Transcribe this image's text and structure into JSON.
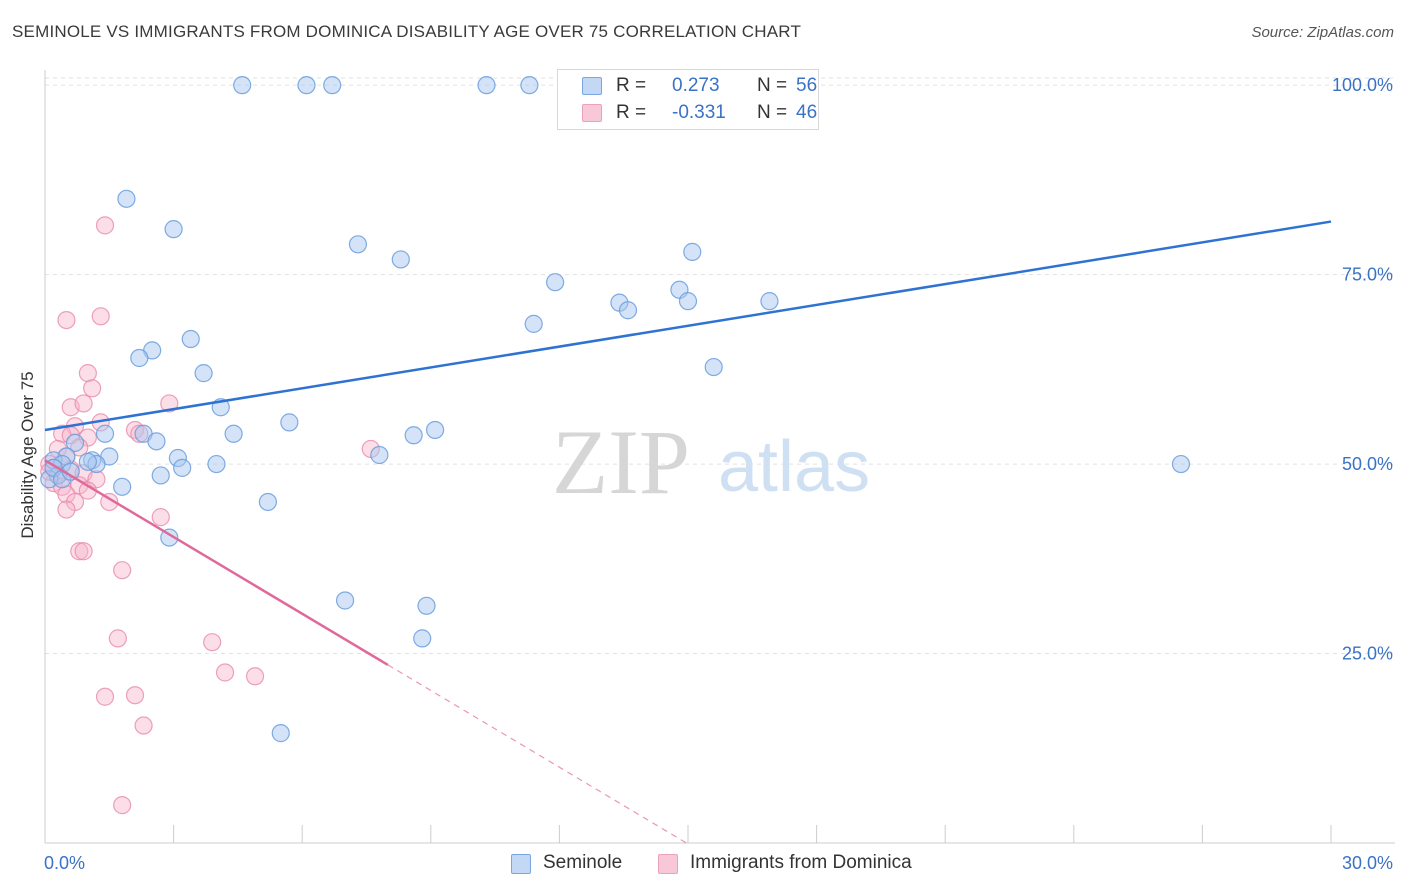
{
  "header": {
    "title": "SEMINOLE VS IMMIGRANTS FROM DOMINICA DISABILITY AGE OVER 75 CORRELATION CHART",
    "source": "Source: ZipAtlas.com"
  },
  "watermark": {
    "zip": "ZIP",
    "atlas": "atlas"
  },
  "legend_top": {
    "rows": [
      {
        "r_label": "R =",
        "r_value": "0.273",
        "n_label": "N =",
        "n_value": "56"
      },
      {
        "r_label": "R =",
        "r_value": "-0.331",
        "n_label": "N =",
        "n_value": "46"
      }
    ]
  },
  "legend_bottom": {
    "items": [
      "Seminole",
      "Immigrants from Dominica"
    ]
  },
  "colors": {
    "seminole_fill": "#a9c8f0",
    "seminole_stroke": "#6a9ede",
    "seminole_line": "#2e72d2",
    "dominica_fill": "#f6b6cb",
    "dominica_stroke": "#e889ab",
    "dominica_line": "#e0699a",
    "value_text": "#3a72c6",
    "grid": "#e2e2e2"
  },
  "chart_data": {
    "type": "scatter",
    "title": "SEMINOLE VS IMMIGRANTS FROM DOMINICA DISABILITY AGE OVER 75 CORRELATION CHART",
    "xlabel": "",
    "ylabel": "Disability Age Over 75",
    "xlim": [
      0,
      30
    ],
    "ylim": [
      0,
      102
    ],
    "x_tick_labels": [
      "0.0%",
      "30.0%"
    ],
    "y_tick_labels": [
      "25.0%",
      "50.0%",
      "75.0%",
      "100.0%"
    ],
    "y_ticks": [
      25,
      50,
      75,
      100
    ],
    "grid": true,
    "legend_position": "bottom",
    "series": [
      {
        "name": "Seminole",
        "trend": {
          "x": [
            0,
            30
          ],
          "y": [
            54.5,
            82
          ],
          "dashed_x": null
        },
        "points": [
          [
            4.6,
            100
          ],
          [
            6.1,
            100
          ],
          [
            6.7,
            100
          ],
          [
            10.3,
            100
          ],
          [
            11.3,
            100
          ],
          [
            1.9,
            85
          ],
          [
            3.0,
            81
          ],
          [
            7.3,
            79
          ],
          [
            8.3,
            77
          ],
          [
            15.1,
            78
          ],
          [
            11.9,
            74
          ],
          [
            13.4,
            71.3
          ],
          [
            13.6,
            70.3
          ],
          [
            14.8,
            73
          ],
          [
            15.0,
            71.5
          ],
          [
            16.9,
            71.5
          ],
          [
            11.4,
            68.5
          ],
          [
            3.4,
            66.5
          ],
          [
            2.5,
            65
          ],
          [
            2.2,
            64
          ],
          [
            3.7,
            62
          ],
          [
            15.6,
            62.8
          ],
          [
            4.1,
            57.5
          ],
          [
            5.7,
            55.5
          ],
          [
            1.4,
            54
          ],
          [
            2.3,
            54
          ],
          [
            4.4,
            54
          ],
          [
            8.6,
            53.8
          ],
          [
            9.1,
            54.5
          ],
          [
            0.7,
            52.8
          ],
          [
            1.5,
            51
          ],
          [
            2.6,
            53
          ],
          [
            0.5,
            51
          ],
          [
            1.1,
            50.5
          ],
          [
            1.2,
            50
          ],
          [
            0.2,
            50.5
          ],
          [
            0.4,
            50
          ],
          [
            3.1,
            50.8
          ],
          [
            3.2,
            49.5
          ],
          [
            4.0,
            50
          ],
          [
            7.8,
            51.2
          ],
          [
            26.5,
            50
          ],
          [
            0.3,
            48.5
          ],
          [
            0.1,
            48
          ],
          [
            1.8,
            47
          ],
          [
            2.7,
            48.5
          ],
          [
            0.2,
            49.5
          ],
          [
            0.4,
            48
          ],
          [
            5.2,
            45
          ],
          [
            2.9,
            40.3
          ],
          [
            7.0,
            32
          ],
          [
            8.9,
            31.3
          ],
          [
            8.8,
            27
          ],
          [
            5.5,
            14.5
          ],
          [
            0.6,
            49
          ],
          [
            1.0,
            50.3
          ]
        ]
      },
      {
        "name": "Immigrants from Dominica",
        "trend": {
          "x": [
            0,
            8
          ],
          "y": [
            50.5,
            23.5
          ],
          "dashed_x": [
            8,
            15
          ]
        },
        "points": [
          [
            1.4,
            81.5
          ],
          [
            0.5,
            69
          ],
          [
            1.3,
            69.5
          ],
          [
            1.0,
            62
          ],
          [
            1.1,
            60
          ],
          [
            0.6,
            57.5
          ],
          [
            0.9,
            58
          ],
          [
            2.9,
            58
          ],
          [
            1.3,
            55.5
          ],
          [
            0.7,
            55
          ],
          [
            0.4,
            54
          ],
          [
            2.1,
            54.5
          ],
          [
            2.2,
            54
          ],
          [
            0.6,
            53.8
          ],
          [
            1.0,
            53.5
          ],
          [
            0.8,
            52.2
          ],
          [
            0.3,
            52
          ],
          [
            7.6,
            52
          ],
          [
            0.5,
            51
          ],
          [
            0.1,
            50
          ],
          [
            0.2,
            49.5
          ],
          [
            0.3,
            48.6
          ],
          [
            0.6,
            49.3
          ],
          [
            0.9,
            48.8
          ],
          [
            1.2,
            48
          ],
          [
            0.2,
            47.5
          ],
          [
            0.4,
            47
          ],
          [
            0.8,
            47.2
          ],
          [
            1.0,
            46.5
          ],
          [
            0.5,
            46
          ],
          [
            0.7,
            45
          ],
          [
            1.5,
            45
          ],
          [
            0.5,
            44
          ],
          [
            2.7,
            43
          ],
          [
            0.8,
            38.5
          ],
          [
            0.9,
            38.5
          ],
          [
            1.8,
            36
          ],
          [
            1.7,
            27
          ],
          [
            3.9,
            26.5
          ],
          [
            4.2,
            22.5
          ],
          [
            4.9,
            22
          ],
          [
            1.4,
            19.3
          ],
          [
            2.1,
            19.5
          ],
          [
            2.3,
            15.5
          ],
          [
            1.8,
            5
          ],
          [
            0.1,
            49
          ]
        ]
      }
    ]
  }
}
